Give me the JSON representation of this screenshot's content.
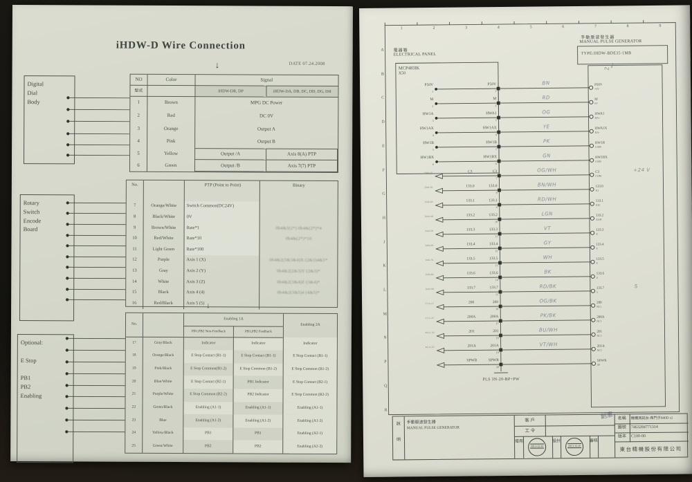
{
  "left_page": {
    "title": "iHDW-D Wire Connection",
    "date": "DATE 07.24.2008",
    "box1_label": "Digital\nDial\nBody",
    "box2_label": "Rotary\nSwitch\nEncode\nBoard",
    "box3_label": "Optional:\n\nE Stop\n\nPB1\nPB2\nEnabling",
    "table1": {
      "h_no": "NO",
      "h_color": "Color",
      "h_signal": "Signal",
      "h_model": "型式",
      "model_left": "iHDW-DR, DP",
      "model_right": "iHDW-DA, DB, DC, DD, DG, DH",
      "rows": [
        {
          "no": "1",
          "color": "Brown",
          "signal": "MPG DC Power"
        },
        {
          "no": "2",
          "color": "Red",
          "signal": "DC 0V"
        },
        {
          "no": "3",
          "color": "Orange",
          "signal": "Output A"
        },
        {
          "no": "4",
          "color": "Pink",
          "signal": "Output B"
        },
        {
          "no": "5",
          "color": "Yellow",
          "sig_a": "Output /A",
          "sig_b": "Axis 8(A)  PTP"
        },
        {
          "no": "6",
          "color": "Green",
          "sig_a": "Output /B",
          "sig_b": "Axis 7(7)  PTP"
        }
      ]
    },
    "table2": {
      "h_ptp": "PTP (Point to Point)",
      "h_bin": "Binary",
      "rows": [
        {
          "no": "7",
          "color": "Orange/White",
          "ptp": "Switch Common(DC24V)",
          "bin": ""
        },
        {
          "no": "8",
          "color": "Black/White",
          "ptp": "0V",
          "bin": ""
        },
        {
          "no": "9",
          "color": "Brown/White",
          "ptp": "Rate*1",
          "bin": "0b4&5(2*)   0b4&(2*)*4"
        },
        {
          "no": "10",
          "color": "Red/White",
          "ptp": "Rate*10",
          "bin": "0b4&(2*)*10"
        },
        {
          "no": "11",
          "color": "Light Green",
          "ptp": "Rate*100",
          "bin": ""
        },
        {
          "no": "12",
          "color": "Purple",
          "ptp": "Axis 1 (X)",
          "bin": "0b4&2(5&3&4)X   (2&3)4&5*"
        },
        {
          "no": "13",
          "color": "Gray",
          "ptp": "Axis 2 (Y)",
          "bin": "0b4&2(2&3)Y   (2&3)*"
        },
        {
          "no": "14",
          "color": "White",
          "ptp": "Axis 3 (Z)",
          "bin": "0b4&2(3&4)Z   (3&4)*"
        },
        {
          "no": "15",
          "color": "Black",
          "ptp": "Axis 4 (4)",
          "bin": "0b4&2(3&5)4   (4&5)*"
        },
        {
          "no": "16",
          "color": "Red/Black",
          "ptp": "Axis 5 (5)",
          "bin": ""
        }
      ]
    },
    "table3": {
      "h_en1": "Enabling 1A",
      "h_en2": "Enabling 2A",
      "h_sub1": "PB1,PB2 Non-Feedback",
      "h_sub2": "PB1,PB2 Feedback",
      "footer": "GND",
      "rows": [
        {
          "no": "17",
          "color": "Gray/Black",
          "c1": "Indicator",
          "c2": "Indicator",
          "c3": "Indicator"
        },
        {
          "no": "18",
          "color": "Orange/Black",
          "c1": "E Stop Contact (B1-1)",
          "c2": "E Stop Contact (B1-1)",
          "c3": "E Stop Contact (B1-1)"
        },
        {
          "no": "19",
          "color": "Pink/Black",
          "c1": "E Stop Common(B1-2)",
          "c2": "E Stop Common (B1-2)",
          "c3": "E Stop Common (B1-2)"
        },
        {
          "no": "20",
          "color": "Blue/White",
          "c1": "E Stop Contact (B2-1)",
          "c2": "PB1 Indicator",
          "c3": "E Stop Contact (B2-1)"
        },
        {
          "no": "21",
          "color": "Purple/White",
          "c1": "E Stop Common (B2-2)",
          "c2": "PB2 Indicator",
          "c3": "E Stop Common (B2-2)"
        },
        {
          "no": "22",
          "color": "Green/Black",
          "c1": "Enabling (A1-1)",
          "c2": "Enabling (A1-1)",
          "c3": "Enabling (A1-1)"
        },
        {
          "no": "23",
          "color": "Blue",
          "c1": "Enabling (A1-2)",
          "c2": "Enabling (A1-2)",
          "c3": "Enabling (A1-2)"
        },
        {
          "no": "24",
          "color": "Yellow/Black",
          "c1": "PB1",
          "c2": "PB1",
          "c3": "Enabling (A2-1)"
        },
        {
          "no": "25",
          "color": "Green/White",
          "c1": "PB2",
          "c2": "PB2",
          "c3": "Enabling (A2-2)"
        }
      ]
    }
  },
  "right_page": {
    "panel_cn": "電器箱",
    "panel_en": "ELECTRICAL PANEL",
    "device_cn": "手動脈波發生器",
    "device_en": "MANUAL PULSE GENERATOR",
    "device_type": "TYPE:IHDW-BDE35-1MB",
    "plc_name": "MCP483IK",
    "plc_sub": "X50",
    "connector_name": "PLS 3N-20-BP+PW",
    "note_24v": "+24 V",
    "col_numbers": [
      "1",
      "2",
      "3",
      "4",
      "5",
      "6",
      "7",
      "8",
      "9"
    ],
    "row_letters": [
      "A",
      "B",
      "C",
      "D",
      "E",
      "F",
      "G",
      "H",
      "J",
      "K",
      "L",
      "M",
      "N",
      "P",
      "Q",
      "R"
    ],
    "rows": [
      {
        "left": "P50V",
        "signal": "P50V",
        "pin": "1",
        "right": "P50V",
        "sub": "+5V",
        "wire": "BN",
        "in_box": true
      },
      {
        "left": "M",
        "signal": "M",
        "pin": "2",
        "right": "M",
        "sub": "0V",
        "wire": "RD",
        "in_box": true
      },
      {
        "left": "HW1A",
        "signal": "HWA1",
        "pin": "3",
        "right": "HWA1",
        "sub": "HA+",
        "wire": "OG",
        "in_box": true
      },
      {
        "left": "HW1AX",
        "signal": "HW1AX",
        "pin": "4",
        "right": "HWA1X",
        "sub": "HA-",
        "wire": "YE",
        "in_box": true
      },
      {
        "left": "HW1B",
        "signal": "HW1B",
        "pin": "5",
        "right": "HW1B",
        "sub": "COM",
        "wire": "PK",
        "in_box": true
      },
      {
        "left": "HW1BX",
        "signal": "HW1BX",
        "pin": "6",
        "right": "HW1BX",
        "sub": "COM",
        "wire": "GN",
        "in_box": true
      },
      {
        "signal": "C3",
        "pin": "7",
        "right": "C3",
        "sub": "COM",
        "wire": "OG/WH",
        "tag": "3044-1B",
        "note": "+24 V"
      },
      {
        "signal": "133.0",
        "pin": "8",
        "right": "133.0",
        "sub": "X1",
        "wire": "BN/WH",
        "tag": "3044-2B"
      },
      {
        "signal": "133.1",
        "pin": "9",
        "right": "133.1",
        "sub": "X10",
        "wire": "RD/WH",
        "tag": "3044-3B"
      },
      {
        "signal": "133.2",
        "pin": "10",
        "right": "133.2",
        "sub": "X100",
        "wire": "LGN",
        "tag": "3044-4B"
      },
      {
        "signal": "133.3",
        "pin": "11",
        "right": "133.3",
        "sub": "X",
        "wire": "VT",
        "tag": "3044-5B"
      },
      {
        "signal": "133.4",
        "pin": "12",
        "right": "133.4",
        "sub": "Y",
        "wire": "GY",
        "tag": "3044-6B"
      },
      {
        "signal": "133.5",
        "pin": "13",
        "right": "133.5",
        "sub": "Z",
        "wire": "WH",
        "tag": "3044-7B"
      },
      {
        "signal": "133.6",
        "pin": "14",
        "right": "133.6",
        "sub": "4",
        "wire": "BK",
        "tag": "3044-8B"
      },
      {
        "signal": "133.7",
        "pin": "15",
        "right": "133.7",
        "sub": "5",
        "wire": "RD/BK",
        "tag": "3044-9B",
        "note": "S"
      },
      {
        "signal": "200",
        "pin": "16",
        "right": "200",
        "sub": "NC1",
        "wire": "OG/BK",
        "tag": "371A-1C"
      },
      {
        "signal": "200A",
        "pin": "17",
        "right": "200A",
        "sub": "NC1",
        "wire": "PK/BK",
        "tag": "371A-2C"
      },
      {
        "signal": "201",
        "pin": "18",
        "right": "201",
        "sub": "NC2",
        "wire": "BU/WH",
        "tag": "401A-1D"
      },
      {
        "signal": "201A",
        "pin": "19",
        "right": "201A",
        "sub": "NC2",
        "wire": "VT/WH",
        "tag": "401A-2D"
      },
      {
        "signal": "SPWR",
        "pin": "20",
        "right": "SPWR",
        "sub": "SP",
        "wire": "",
        "tag": ""
      }
    ],
    "titleblock": {
      "side1": "說",
      "side2": "明",
      "desc_cn": "手動脈波發生器",
      "desc_en": "MANUAL PULSE GENERATOR",
      "customer_label": "客 戶",
      "workorder_label": "工 令",
      "name_label": "名稱",
      "name_value": "機種測試台-西門子840D s1",
      "drawno_label": "圖號",
      "drawno_value": "7463284771314",
      "version_label": "版本",
      "version_value": "C100-00",
      "company": "東台精機股份有限公司",
      "stamp1_label": "增用",
      "stamp1_date": "2013-12-10",
      "stamp2_label": "設計",
      "stamp2_date": "2013-12-10",
      "stamp3_label": "審核",
      "red_mark": "創憲"
    }
  }
}
